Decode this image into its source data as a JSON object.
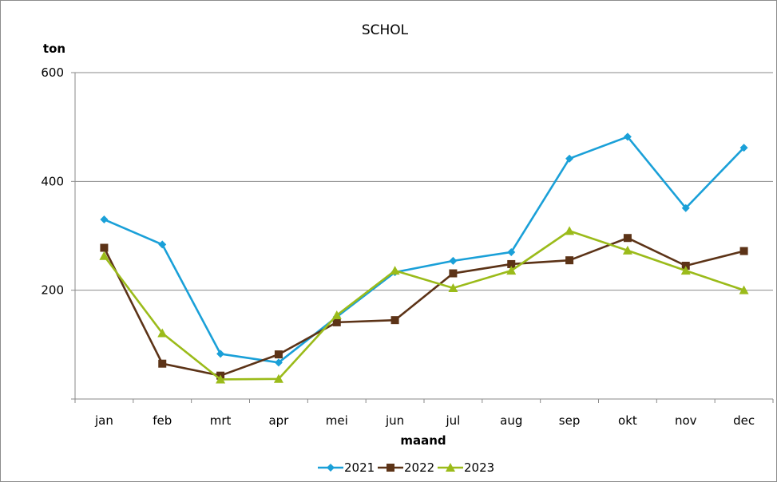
{
  "chart_data": {
    "type": "line",
    "title": "SCHOL",
    "ylabel": "ton",
    "xlabel": "maand",
    "categories": [
      "jan",
      "feb",
      "mrt",
      "apr",
      "mei",
      "jun",
      "jul",
      "aug",
      "sep",
      "okt",
      "nov",
      "dec"
    ],
    "ylim": [
      0,
      600
    ],
    "yticks": [
      200,
      400,
      600
    ],
    "grid": true,
    "legend": "bottom",
    "series": [
      {
        "name": "2021",
        "color": "#1aa0d8",
        "marker": "diamond",
        "values": [
          330,
          284,
          83,
          67,
          151,
          233,
          254,
          270,
          442,
          482,
          351,
          462
        ]
      },
      {
        "name": "2022",
        "color": "#5c3317",
        "marker": "square",
        "values": [
          278,
          65,
          43,
          82,
          141,
          145,
          231,
          248,
          255,
          296,
          245,
          272
        ]
      },
      {
        "name": "2023",
        "color": "#9bbb1a",
        "marker": "triangle",
        "values": [
          263,
          121,
          36,
          37,
          154,
          236,
          204,
          236,
          309,
          273,
          236,
          200
        ]
      }
    ]
  }
}
